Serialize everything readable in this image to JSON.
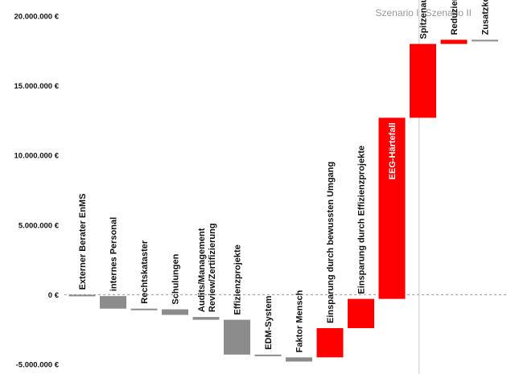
{
  "chart_data": {
    "type": "waterfall",
    "ylim": [
      -5000000,
      20000000
    ],
    "y_ticks": [
      {
        "value": 20000000,
        "label": "20.000.000 €"
      },
      {
        "value": 15000000,
        "label": "15.000.000 €"
      },
      {
        "value": 10000000,
        "label": "10.000.000 €"
      },
      {
        "value": 5000000,
        "label": "5.000.000 €"
      },
      {
        "value": 0,
        "label": "0 €"
      },
      {
        "value": -5000000,
        "label": "-5.000.000 €"
      }
    ],
    "colors": {
      "cost": "#8c8c8c",
      "saving": "#ff0000",
      "baseline": "#999999",
      "divider": "#c8c8c8"
    },
    "sections": [
      {
        "label": "Szenario I",
        "starts_before_bar": 9
      },
      {
        "label": "Szenario II",
        "starts_before_bar": 11
      }
    ],
    "bars": [
      {
        "label": "Externer Berater EnMS",
        "start": 0,
        "end": -100000,
        "kind": "cost"
      },
      {
        "label": "internes Personal",
        "start": -100000,
        "end": -1000000,
        "kind": "cost"
      },
      {
        "label": "Rechtskataster",
        "start": -1000000,
        "end": -1050000,
        "kind": "cost"
      },
      {
        "label": "Schulungen",
        "start": -1050000,
        "end": -1450000,
        "kind": "cost"
      },
      {
        "label": "Audits/Management Review/Zertifizierung",
        "start": -1600000,
        "end": -1800000,
        "kind": "cost"
      },
      {
        "label": "Effizienzprojekte",
        "start": -1800000,
        "end": -4300000,
        "kind": "cost"
      },
      {
        "label": "EDM-System",
        "start": -4300000,
        "end": -4400000,
        "kind": "cost"
      },
      {
        "label": "Faktor Mensch",
        "start": -4500000,
        "end": -4800000,
        "kind": "cost"
      },
      {
        "label": "Einsparung durch bewussten Umgang",
        "start": -4500000,
        "end": -2400000,
        "kind": "saving"
      },
      {
        "label": "Einsparung durch Effizienzprojekte",
        "start": -2400000,
        "end": -300000,
        "kind": "saving"
      },
      {
        "label": "EEG-Härtefall",
        "start": -300000,
        "end": 12700000,
        "kind": "saving",
        "label_inside": true
      },
      {
        "label": "Spitzenausgleich",
        "start": 12700000,
        "end": 18000000,
        "kind": "saving"
      },
      {
        "label": "Reduzierung Ausgaben",
        "start": 18000000,
        "end": 18300000,
        "kind": "saving"
      },
      {
        "label": "Zusatzkosten ext. Berater mit Soft-Skills",
        "start": 18300000,
        "end": 18200000,
        "kind": "cost"
      }
    ]
  }
}
